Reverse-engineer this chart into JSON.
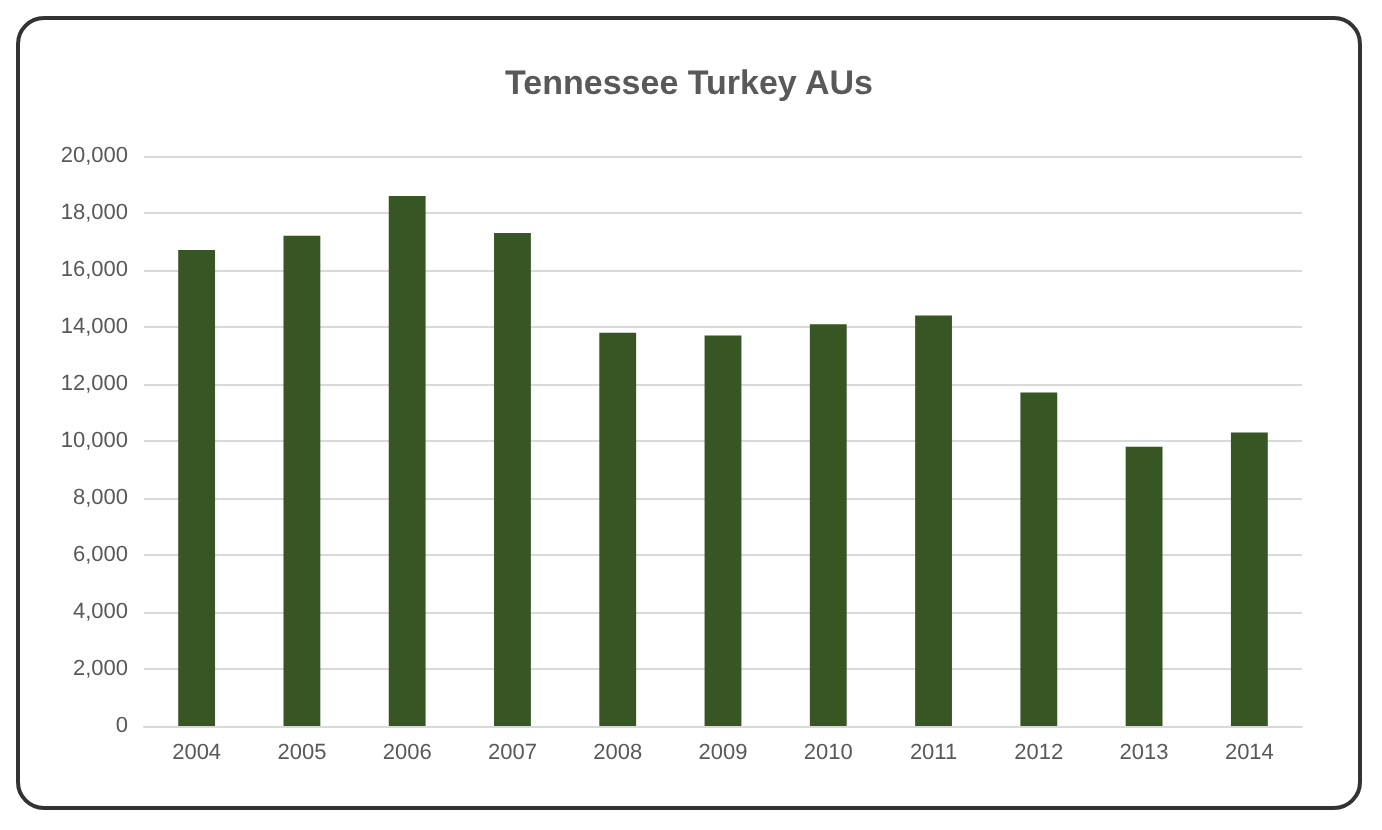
{
  "chart_data": {
    "type": "bar",
    "title": "Tennessee Turkey AUs",
    "categories": [
      "2004",
      "2005",
      "2006",
      "2007",
      "2008",
      "2009",
      "2010",
      "2011",
      "2012",
      "2013",
      "2014"
    ],
    "values": [
      16700,
      17200,
      18600,
      17300,
      13800,
      13700,
      14100,
      14400,
      11700,
      9800,
      10300
    ],
    "color": "#375623",
    "ylim": [
      0,
      20000
    ],
    "yticks": [
      0,
      {
        "value": 2000,
        "label": "2,000"
      },
      {
        "value": 4000,
        "label": "4,000"
      },
      {
        "value": 6000,
        "label": "6,000"
      },
      {
        "value": 8000,
        "label": "8,000"
      },
      {
        "value": 10000,
        "label": "10,000"
      },
      {
        "value": 12000,
        "label": "12,000"
      },
      {
        "value": 14000,
        "label": "14,000"
      },
      {
        "value": 16000,
        "label": "16,000"
      },
      {
        "value": 18000,
        "label": "18,000"
      },
      {
        "value": 20000,
        "label": "20,000"
      }
    ],
    "grid": "y"
  }
}
